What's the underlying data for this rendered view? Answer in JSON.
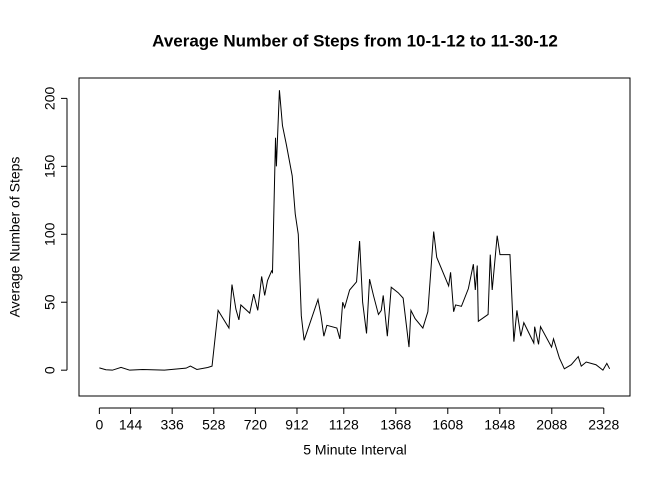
{
  "chart_data": {
    "type": "line",
    "title": "Average Number of Steps from 10-1-12 to 11-30-12",
    "x_label": "5 Minute Interval",
    "y_label": "Average Number of Steps",
    "x": [
      0,
      30,
      60,
      100,
      140,
      200,
      300,
      400,
      420,
      450,
      500,
      520,
      548,
      598,
      612,
      630,
      644,
      653,
      694,
      712,
      731,
      749,
      763,
      776,
      795,
      799,
      813,
      817,
      831,
      845,
      863,
      890,
      904,
      918,
      932,
      945,
      1009,
      1023,
      1036,
      1050,
      1096,
      1110,
      1123,
      1132,
      1155,
      1187,
      1201,
      1215,
      1233,
      1247,
      1265,
      1288,
      1301,
      1310,
      1329,
      1347,
      1379,
      1402,
      1429,
      1438,
      1457,
      1493,
      1516,
      1543,
      1557,
      1612,
      1621,
      1635,
      1644,
      1671,
      1703,
      1726,
      1735,
      1744,
      1749,
      1794,
      1804,
      1813,
      1836,
      1849,
      1895,
      1913,
      1927,
      1945,
      1959,
      2005,
      2009,
      2027,
      2036,
      2087,
      2096,
      2123,
      2146,
      2178,
      2210,
      2224,
      2247,
      2292,
      2324,
      2342,
      2355
    ],
    "series": [
      {
        "color": "#000000",
        "values": [
          1.7,
          0.3,
          0,
          2,
          0,
          0.5,
          0,
          1.5,
          3,
          0.5,
          2,
          3,
          44,
          31,
          63,
          45,
          37,
          48,
          42,
          56,
          44,
          69,
          55,
          66,
          73,
          72,
          171,
          150,
          206,
          180,
          166,
          143,
          115,
          100,
          40,
          22,
          52,
          40,
          25,
          33,
          31,
          23,
          50,
          46,
          59,
          65,
          95,
          50,
          27,
          67,
          55,
          41,
          44,
          55,
          25,
          61,
          57,
          53,
          17,
          44,
          38,
          31,
          43,
          102,
          83,
          62,
          72,
          43,
          48,
          47,
          60,
          78,
          59,
          77,
          36,
          41,
          85,
          59,
          99,
          85,
          85,
          21,
          44,
          25,
          35,
          20,
          32,
          19,
          32,
          17,
          23,
          9,
          1,
          4,
          10,
          3,
          6,
          4,
          0,
          5,
          1
        ]
      }
    ],
    "xlim": [
      -94,
      2449
    ],
    "ylim": [
      -19,
      215
    ],
    "xticks": [
      0,
      144,
      336,
      528,
      720,
      912,
      1128,
      1368,
      1608,
      1848,
      2088,
      2328
    ],
    "yticks": [
      0,
      50,
      100,
      150,
      200
    ]
  }
}
